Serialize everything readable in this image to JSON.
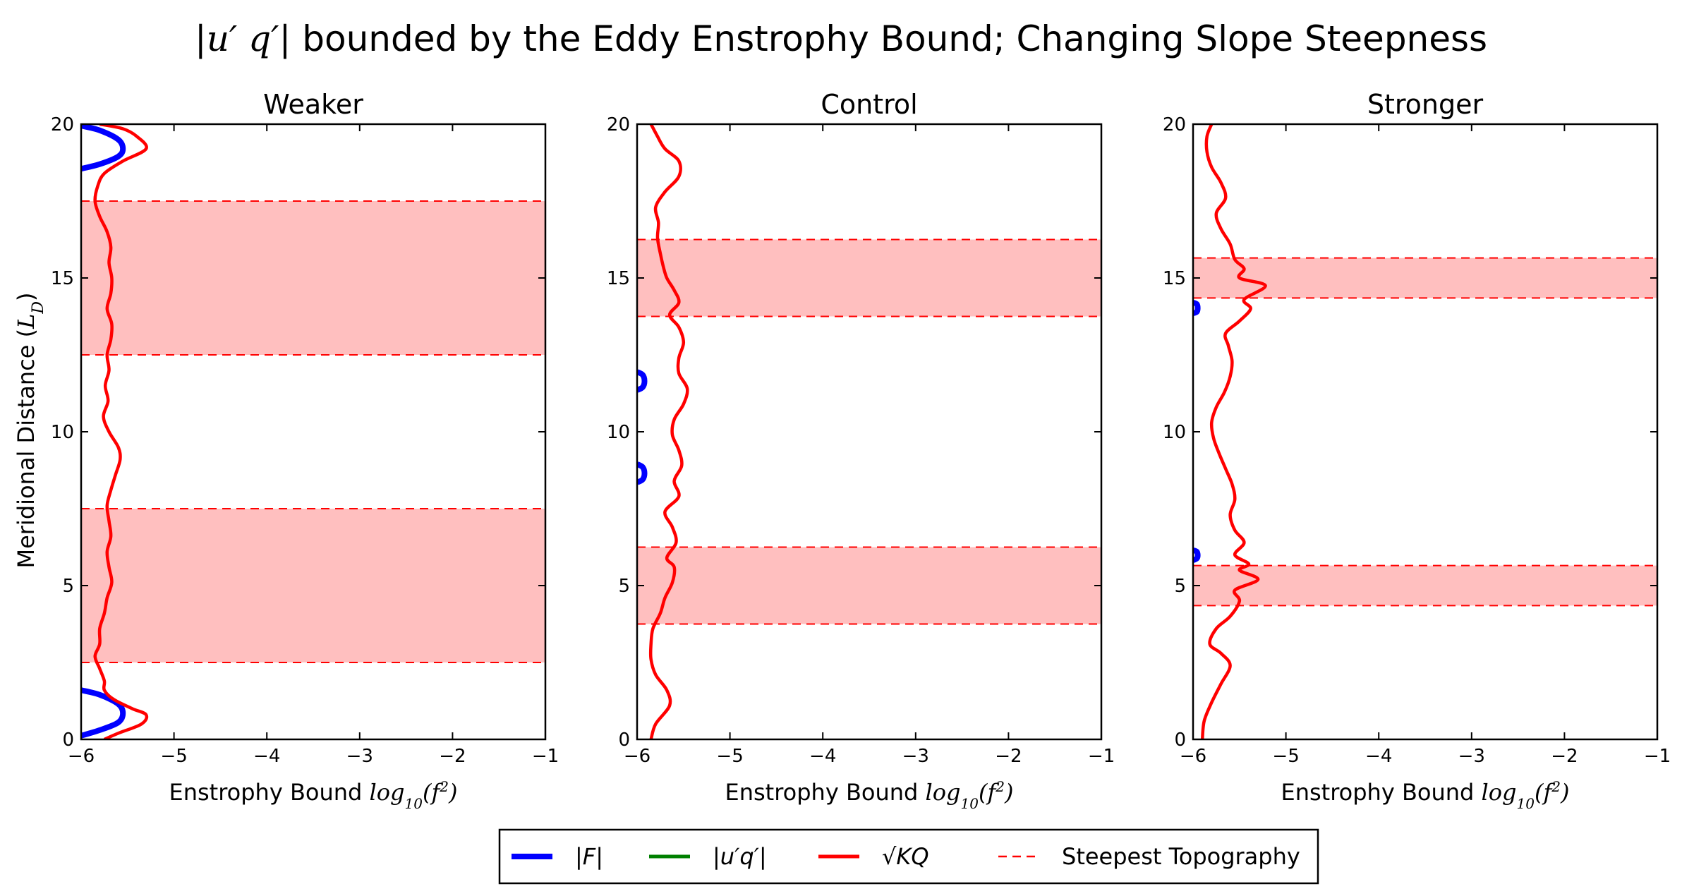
{
  "chart_data": {
    "title": "|u'q'| bounded by the Eddy Enstrophy Bound; Changing Slope Steepness",
    "title_math": "|u′ q′|",
    "title_text": " bounded by the Eddy Enstrophy Bound; Changing Slope Steepness",
    "ylabel": "Meridional Distance (L_D)",
    "ylabel_text": "Meridional Distance (",
    "ylabel_math": "L",
    "ylabel_sub": "D",
    "xlabel": "Enstrophy Bound log10(f^2)",
    "xlabel_text": "Enstrophy Bound ",
    "xlabel_math": "log",
    "xlabel_sub": "10",
    "xlabel_arg": "(f",
    "xlabel_sup": "2",
    "xlim": [
      -6,
      -1
    ],
    "ylim": [
      0,
      20
    ],
    "xticks": [
      -6,
      -5,
      -4,
      -3,
      -2,
      -1
    ],
    "xtick_labels": [
      "−6",
      "−5",
      "−4",
      "−3",
      "−2",
      "−1"
    ],
    "yticks": [
      0,
      5,
      10,
      15,
      20
    ],
    "ytick_labels": [
      "0",
      "5",
      "10",
      "15",
      "20"
    ],
    "colors": {
      "F": "#0000ff",
      "uq": "#008000",
      "KQ": "#ff0000",
      "band_fill": "#ffbfbf",
      "band_edge": "#ff0000"
    },
    "legend": {
      "placement": "bottom-center",
      "entries": [
        {
          "key": "F",
          "label": "|F|",
          "style": "solid",
          "color": "#0000ff"
        },
        {
          "key": "uq",
          "label": "|u′q′|",
          "style": "solid",
          "color": "#008000"
        },
        {
          "key": "KQ",
          "label": "√KQ",
          "style": "solid",
          "color": "#ff0000"
        },
        {
          "key": "steep",
          "label": "Steepest Topography",
          "style": "dashed",
          "color": "#ff0000"
        }
      ]
    },
    "panels": [
      {
        "title": "Weaker",
        "bands": [
          [
            2.5,
            7.5
          ],
          [
            12.5,
            17.5
          ]
        ],
        "kq": [
          [
            -5.75,
            0
          ],
          [
            -5.6,
            0.2
          ],
          [
            -5.35,
            0.5
          ],
          [
            -5.3,
            0.8
          ],
          [
            -5.45,
            1.0
          ],
          [
            -5.65,
            1.3
          ],
          [
            -5.75,
            1.6
          ],
          [
            -5.75,
            1.9
          ],
          [
            -5.8,
            2.3
          ],
          [
            -5.85,
            2.7
          ],
          [
            -5.8,
            3.1
          ],
          [
            -5.8,
            3.6
          ],
          [
            -5.75,
            4.1
          ],
          [
            -5.72,
            4.6
          ],
          [
            -5.67,
            5.1
          ],
          [
            -5.7,
            5.6
          ],
          [
            -5.72,
            6.1
          ],
          [
            -5.68,
            6.6
          ],
          [
            -5.7,
            7.1
          ],
          [
            -5.72,
            7.6
          ],
          [
            -5.68,
            8.1
          ],
          [
            -5.63,
            8.6
          ],
          [
            -5.58,
            9.1
          ],
          [
            -5.6,
            9.5
          ],
          [
            -5.7,
            10.0
          ],
          [
            -5.76,
            10.5
          ],
          [
            -5.71,
            11.0
          ],
          [
            -5.74,
            11.5
          ],
          [
            -5.7,
            12.0
          ],
          [
            -5.72,
            12.5
          ],
          [
            -5.68,
            13.0
          ],
          [
            -5.67,
            13.5
          ],
          [
            -5.72,
            14.0
          ],
          [
            -5.68,
            14.5
          ],
          [
            -5.67,
            15.0
          ],
          [
            -5.7,
            15.5
          ],
          [
            -5.68,
            16.0
          ],
          [
            -5.72,
            16.5
          ],
          [
            -5.8,
            17.0
          ],
          [
            -5.85,
            17.5
          ],
          [
            -5.82,
            18.0
          ],
          [
            -5.75,
            18.4
          ],
          [
            -5.55,
            18.8
          ],
          [
            -5.3,
            19.2
          ],
          [
            -5.4,
            19.6
          ],
          [
            -5.55,
            19.85
          ],
          [
            -5.8,
            20
          ]
        ],
        "flux": [
          [
            [
              -6,
              19.95
            ],
            [
              -5.8,
              19.8
            ],
            [
              -5.6,
              19.5
            ],
            [
              -5.55,
              19.2
            ],
            [
              -5.6,
              18.95
            ],
            [
              -5.8,
              18.7
            ],
            [
              -6,
              18.55
            ]
          ],
          [
            [
              -6,
              1.6
            ],
            [
              -5.8,
              1.45
            ],
            [
              -5.6,
              1.15
            ],
            [
              -5.55,
              0.85
            ],
            [
              -5.6,
              0.55
            ],
            [
              -5.8,
              0.3
            ],
            [
              -6,
              0.12
            ]
          ]
        ]
      },
      {
        "title": "Control",
        "bands": [
          [
            3.75,
            6.25
          ],
          [
            13.75,
            16.25
          ]
        ],
        "kq": [
          [
            -5.85,
            0
          ],
          [
            -5.8,
            0.5
          ],
          [
            -5.65,
            1.1
          ],
          [
            -5.68,
            1.6
          ],
          [
            -5.8,
            2.1
          ],
          [
            -5.85,
            2.6
          ],
          [
            -5.85,
            3.1
          ],
          [
            -5.83,
            3.6
          ],
          [
            -5.75,
            4.1
          ],
          [
            -5.7,
            4.6
          ],
          [
            -5.62,
            5.1
          ],
          [
            -5.6,
            5.6
          ],
          [
            -5.68,
            5.9
          ],
          [
            -5.58,
            6.4
          ],
          [
            -5.62,
            6.9
          ],
          [
            -5.7,
            7.4
          ],
          [
            -5.55,
            7.9
          ],
          [
            -5.6,
            8.4
          ],
          [
            -5.52,
            8.9
          ],
          [
            -5.55,
            9.4
          ],
          [
            -5.62,
            9.9
          ],
          [
            -5.6,
            10.4
          ],
          [
            -5.5,
            10.9
          ],
          [
            -5.46,
            11.4
          ],
          [
            -5.55,
            11.9
          ],
          [
            -5.55,
            12.4
          ],
          [
            -5.5,
            12.9
          ],
          [
            -5.55,
            13.4
          ],
          [
            -5.65,
            13.8
          ],
          [
            -5.55,
            14.2
          ],
          [
            -5.6,
            14.6
          ],
          [
            -5.68,
            15.0
          ],
          [
            -5.72,
            15.4
          ],
          [
            -5.75,
            15.8
          ],
          [
            -5.78,
            16.3
          ],
          [
            -5.77,
            16.8
          ],
          [
            -5.8,
            17.3
          ],
          [
            -5.7,
            17.8
          ],
          [
            -5.55,
            18.3
          ],
          [
            -5.55,
            18.8
          ],
          [
            -5.7,
            19.2
          ],
          [
            -5.78,
            19.6
          ],
          [
            -5.85,
            20
          ]
        ],
        "flux": [
          [
            [
              -6,
              11.95
            ],
            [
              -5.94,
              11.85
            ],
            [
              -5.92,
              11.65
            ],
            [
              -5.94,
              11.45
            ],
            [
              -6,
              11.35
            ]
          ],
          [
            [
              -6,
              8.95
            ],
            [
              -5.94,
              8.85
            ],
            [
              -5.92,
              8.65
            ],
            [
              -5.94,
              8.45
            ],
            [
              -6,
              8.35
            ]
          ]
        ]
      },
      {
        "title": "Stronger",
        "bands": [
          [
            4.35,
            5.65
          ],
          [
            14.35,
            15.65
          ]
        ],
        "kq": [
          [
            -5.9,
            0
          ],
          [
            -5.88,
            0.6
          ],
          [
            -5.8,
            1.2
          ],
          [
            -5.7,
            1.8
          ],
          [
            -5.6,
            2.4
          ],
          [
            -5.7,
            2.8
          ],
          [
            -5.82,
            3.1
          ],
          [
            -5.75,
            3.6
          ],
          [
            -5.6,
            4.0
          ],
          [
            -5.5,
            4.5
          ],
          [
            -5.55,
            4.85
          ],
          [
            -5.3,
            5.2
          ],
          [
            -5.5,
            5.5
          ],
          [
            -5.4,
            5.7
          ],
          [
            -5.55,
            6.0
          ],
          [
            -5.45,
            6.4
          ],
          [
            -5.55,
            6.8
          ],
          [
            -5.6,
            7.3
          ],
          [
            -5.55,
            7.8
          ],
          [
            -5.58,
            8.3
          ],
          [
            -5.65,
            8.8
          ],
          [
            -5.72,
            9.3
          ],
          [
            -5.78,
            9.8
          ],
          [
            -5.8,
            10.3
          ],
          [
            -5.75,
            10.8
          ],
          [
            -5.66,
            11.3
          ],
          [
            -5.6,
            11.8
          ],
          [
            -5.58,
            12.3
          ],
          [
            -5.62,
            12.8
          ],
          [
            -5.65,
            13.2
          ],
          [
            -5.5,
            13.6
          ],
          [
            -5.38,
            14.0
          ],
          [
            -5.45,
            14.3
          ],
          [
            -5.22,
            14.75
          ],
          [
            -5.5,
            15.0
          ],
          [
            -5.45,
            15.3
          ],
          [
            -5.55,
            15.6
          ],
          [
            -5.6,
            16.1
          ],
          [
            -5.7,
            16.6
          ],
          [
            -5.75,
            17.1
          ],
          [
            -5.65,
            17.6
          ],
          [
            -5.7,
            18.1
          ],
          [
            -5.8,
            18.6
          ],
          [
            -5.85,
            19.1
          ],
          [
            -5.85,
            19.6
          ],
          [
            -5.8,
            20
          ]
        ],
        "flux": [
          [
            [
              -6,
              14.2
            ],
            [
              -5.96,
              14.15
            ],
            [
              -5.95,
              14.02
            ],
            [
              -5.96,
              13.9
            ],
            [
              -6,
              13.85
            ]
          ],
          [
            [
              -6,
              6.15
            ],
            [
              -5.96,
              6.1
            ],
            [
              -5.95,
              5.98
            ],
            [
              -5.96,
              5.88
            ],
            [
              -6,
              5.82
            ]
          ]
        ]
      }
    ]
  }
}
